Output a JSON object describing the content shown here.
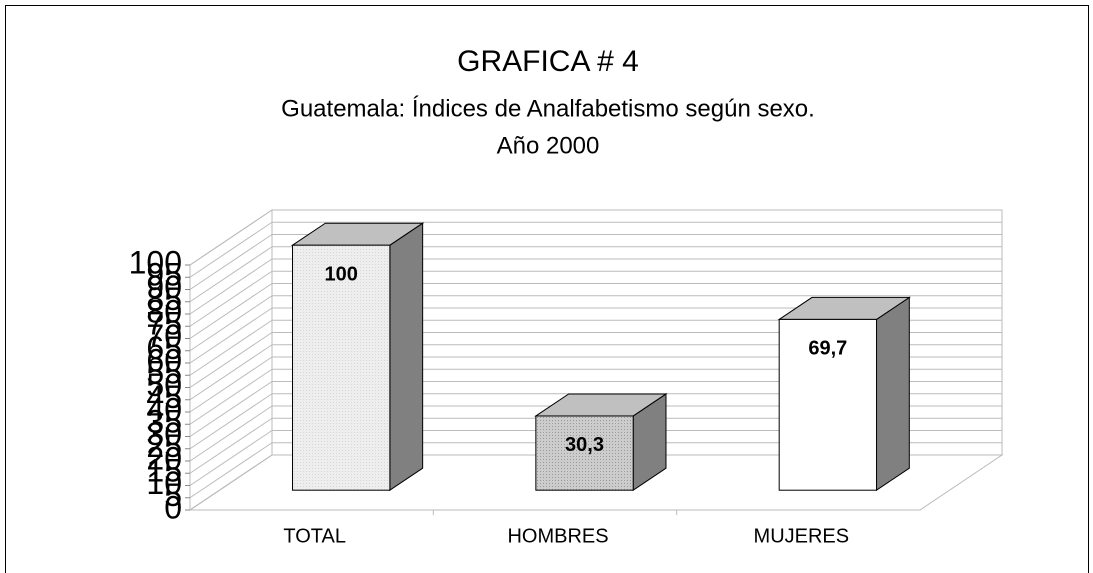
{
  "chart_data": {
    "type": "bar3d",
    "title": "GRAFICA # 4",
    "subtitle": [
      "Guatemala:  Índices de Analfabetismo según sexo.",
      "Año 2000"
    ],
    "categories": [
      "TOTAL",
      "HOMBRES",
      "MUJERES"
    ],
    "values": [
      100,
      30.3,
      69.7
    ],
    "value_labels": [
      "100",
      "30,3",
      "69,7"
    ],
    "colors": [
      "#eeeeee",
      "#cccccc",
      "#ffffff"
    ],
    "ylim": [
      0,
      100
    ],
    "yticks": [
      0,
      5,
      10,
      15,
      20,
      25,
      30,
      35,
      40,
      45,
      50,
      55,
      60,
      65,
      70,
      75,
      80,
      85,
      90,
      95,
      100
    ],
    "grid": true
  }
}
